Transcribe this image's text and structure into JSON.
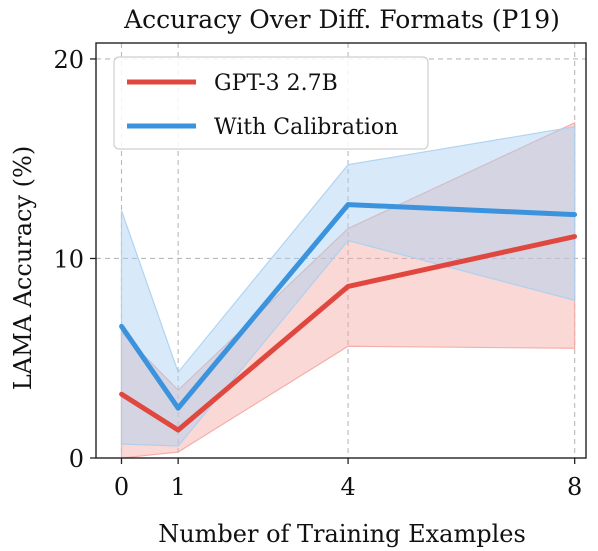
{
  "chart_data": {
    "type": "line",
    "title": "Accuracy Over Diff. Formats (P19)",
    "xlabel": "Number of Training Examples",
    "ylabel": "LAMA Accuracy (%)",
    "x": [
      0,
      1,
      4,
      8
    ],
    "x_ticks": [
      "0",
      "1",
      "4",
      "8"
    ],
    "y_ticks": [
      "0",
      "10",
      "20"
    ],
    "xlim": [
      -0.45,
      8.2
    ],
    "ylim": [
      0,
      20.8
    ],
    "grid": true,
    "grid_style": "dashed",
    "legend_position": "top-left",
    "series": [
      {
        "name": "GPT-3 2.7B",
        "color": "#e0483f",
        "band_color": "#f4a9a3",
        "values": [
          3.2,
          1.4,
          8.6,
          11.1
        ],
        "lower": [
          0.0,
          0.3,
          5.6,
          5.5
        ],
        "upper": [
          6.3,
          3.4,
          11.5,
          16.8
        ]
      },
      {
        "name": "With Calibration",
        "color": "#3a93dc",
        "band_color": "#a9d0f1",
        "values": [
          6.6,
          2.5,
          12.7,
          12.2
        ],
        "lower": [
          0.7,
          0.6,
          10.9,
          7.9
        ],
        "upper": [
          12.4,
          4.3,
          14.7,
          16.6
        ]
      }
    ]
  }
}
